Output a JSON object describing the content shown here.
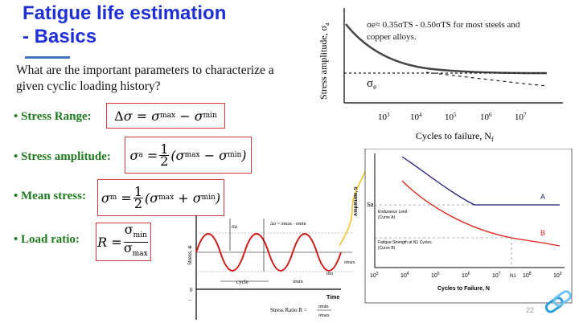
{
  "slide": {
    "title_line1": "Fatigue life estimation",
    "title_line2": "- Basics",
    "question": "What are the important parameters to characterize a given cyclic loading history?",
    "page_number": "22"
  },
  "parameters": [
    {
      "label": "• Stress Range:"
    },
    {
      "label": "• Stress amplitude:"
    },
    {
      "label": "• Mean stress:"
    },
    {
      "label": "• Load ratio:"
    }
  ],
  "sn_chart": {
    "ylabel": "Stress amplitude, σ",
    "ylabel_sub": "a",
    "xlabel": "Cycles to failure, N",
    "xlabel_sub": "f",
    "note_line1": "σe≈ 0.35σTS - 0.50σTS for most steels and",
    "note_line2": "copper alloys.",
    "endurance_label": "σ",
    "endurance_sub": "e",
    "ticks": [
      "3",
      "4",
      "5",
      "6",
      "7"
    ]
  },
  "cycle_chart": {
    "ylabel": "Stress, σ",
    "xlabel": "Time",
    "zero": "0",
    "label_sa": "σa",
    "label_range": "Δσ = σmax - σmin",
    "label_cycle": "cycle",
    "label_smin": "σmin",
    "label_sm": "σm",
    "label_smax": "σmax",
    "plus": "+",
    "minus": "−",
    "ratio_prefix": "Stress Ratio  R =",
    "ratio_num": "σmin",
    "ratio_den": "σmax"
  },
  "ab_chart": {
    "ylabel": "Amplitude, S",
    "xlabel": "Cycles to Failure, N",
    "y_tick": "Sa",
    "curve_a": "A",
    "curve_b": "B",
    "endurance_line1": "Endurance Limit",
    "endurance_line2": "(Curve A)",
    "fatigue_line1": "Fatigue Strength at N1 Cycles",
    "fatigue_line2": "(Curve B)",
    "n1": "N1",
    "ticks": [
      "3",
      "4",
      "5",
      "6",
      "7",
      "8",
      "9"
    ],
    "color_a": "#1c1c7a",
    "color_b": "#e0201a"
  },
  "colors": {
    "title": "#1f2fd6",
    "param_label": "#1e7a1e",
    "box_border": "#d43a3a",
    "wave": "#d01818"
  },
  "logo_icon": "chain-link-icon"
}
